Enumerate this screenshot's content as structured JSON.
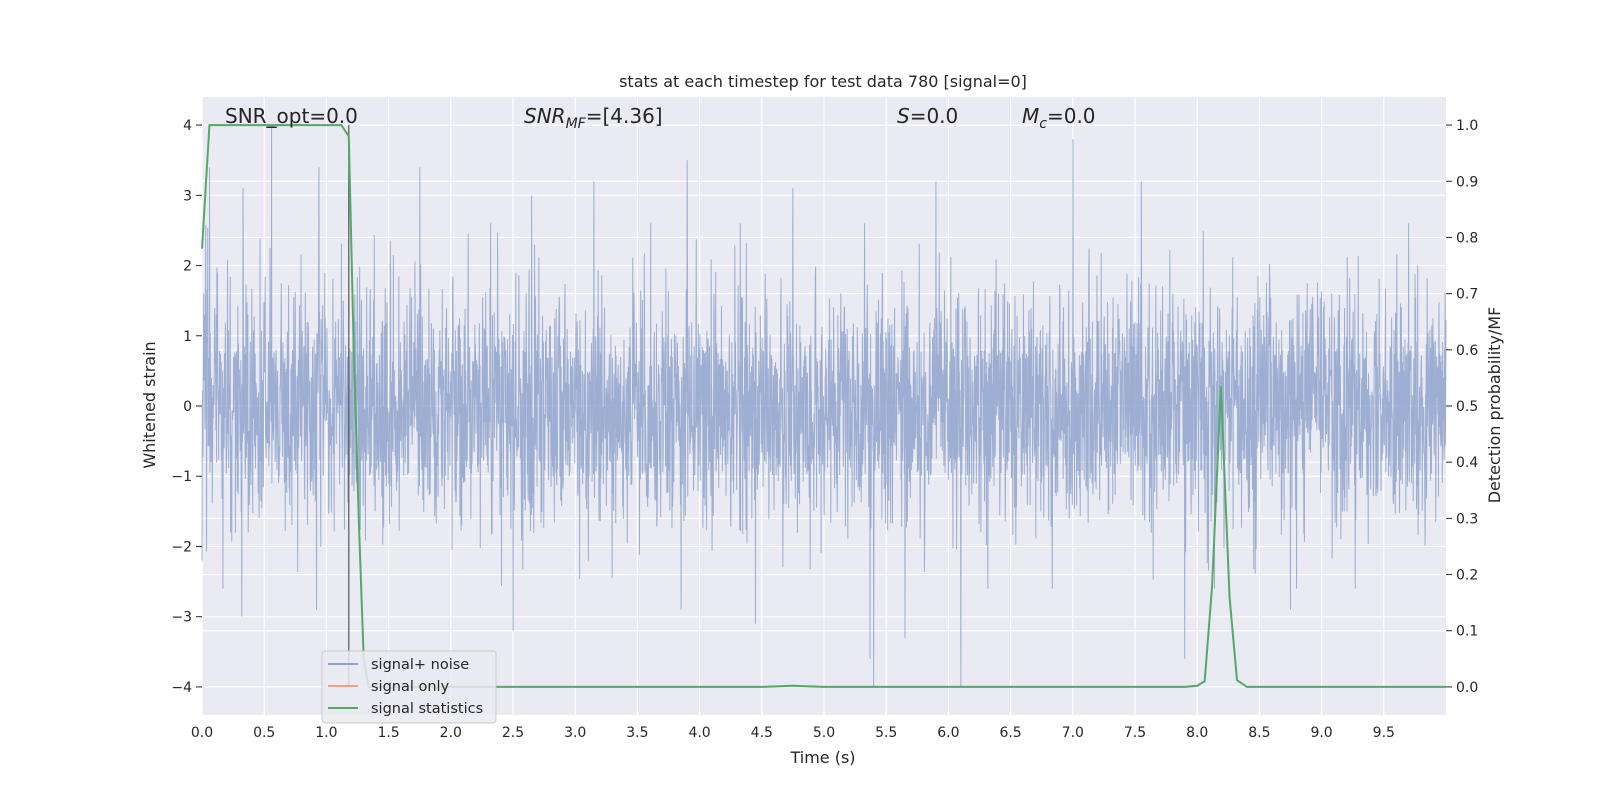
{
  "chart_data": {
    "type": "line",
    "title": "stats at each timestep for test data 780 [signal=0]",
    "xlabel": "Time (s)",
    "ylabel": "Whitened strain",
    "ylabel_right": "Detection probability/MF",
    "xlim": [
      0.0,
      10.0
    ],
    "ylim": [
      -4.4,
      4.4
    ],
    "ylim_right": [
      -0.05,
      1.05
    ],
    "x_ticks": [
      "0.0",
      "0.5",
      "1.0",
      "1.5",
      "2.0",
      "2.5",
      "3.0",
      "3.5",
      "4.0",
      "4.5",
      "5.0",
      "5.5",
      "6.0",
      "6.5",
      "7.0",
      "7.5",
      "8.0",
      "8.5",
      "9.0",
      "9.5"
    ],
    "y_ticks": [
      "−4",
      "−3",
      "−2",
      "−1",
      "0",
      "1",
      "2",
      "3",
      "4"
    ],
    "y_ticks_right": [
      "0.0",
      "0.1",
      "0.2",
      "0.3",
      "0.4",
      "0.5",
      "0.6",
      "0.7",
      "0.8",
      "0.9",
      "1.0"
    ],
    "grid": true,
    "legend_position": "lower-left",
    "annotations": {
      "snr_opt": "SNR_opt=0.0",
      "snr_mf_prefix": "SNR",
      "snr_mf_sub": "MF",
      "snr_mf_value": "=[4.36]",
      "s_symbol": "S",
      "s_value": "=0.0",
      "mc_symbol": "M",
      "mc_sub": "c",
      "mc_value": "=0.0"
    },
    "series": [
      {
        "name": "signal+ noise",
        "color": "#8fa3cc",
        "axis": "left",
        "note_values": "dense whitened noise, amplitude mostly within ±2.2, peaks near 4.0 and -4.0",
        "noise_std": 0.85,
        "spikes": [
          [
            0.06,
            3.4
          ],
          [
            0.33,
            3.1
          ],
          [
            0.56,
            4.0
          ],
          [
            0.94,
            3.4
          ],
          [
            1.75,
            3.4
          ],
          [
            2.65,
            3.0
          ],
          [
            3.15,
            3.2
          ],
          [
            3.9,
            3.5
          ],
          [
            4.75,
            3.1
          ],
          [
            5.9,
            3.2
          ],
          [
            6.1,
            3.2
          ],
          [
            7.0,
            3.8
          ],
          [
            7.55,
            3.2
          ],
          [
            9.7,
            2.6
          ],
          [
            0.32,
            -3.0
          ],
          [
            0.92,
            -2.9
          ],
          [
            2.5,
            -3.2
          ],
          [
            3.85,
            -2.9
          ],
          [
            4.45,
            -3.1
          ],
          [
            5.37,
            -3.6
          ],
          [
            5.4,
            -4.0
          ],
          [
            5.65,
            -3.3
          ],
          [
            6.1,
            -4.0
          ],
          [
            7.9,
            -3.6
          ],
          [
            8.75,
            -2.9
          ]
        ]
      },
      {
        "name": "signal only",
        "color": "#e8a385",
        "axis": "left",
        "values": "zero throughout"
      },
      {
        "name": "signal statistics",
        "color": "#55a868",
        "axis": "right",
        "x": [
          0.0,
          0.06,
          0.12,
          0.2,
          0.4,
          0.6,
          0.8,
          1.0,
          1.12,
          1.18,
          1.22,
          1.26,
          1.3,
          1.34,
          1.4,
          2.0,
          3.0,
          4.0,
          4.5,
          4.75,
          5.0,
          6.0,
          7.0,
          7.9,
          8.0,
          8.06,
          8.12,
          8.19,
          8.26,
          8.32,
          8.4,
          9.0,
          10.0
        ],
        "values": [
          0.78,
          1.0,
          1.0,
          1.0,
          1.0,
          1.0,
          1.0,
          1.0,
          1.0,
          0.98,
          0.6,
          0.3,
          0.05,
          0.0,
          0.0,
          0.0,
          0.0,
          0.0,
          0.0,
          0.002,
          0.0,
          0.0,
          0.0,
          0.0,
          0.002,
          0.01,
          0.18,
          0.535,
          0.16,
          0.012,
          0.0,
          0.0,
          0.0
        ]
      }
    ],
    "vertical_marker": {
      "x": 1.18,
      "color": "#555555"
    }
  }
}
